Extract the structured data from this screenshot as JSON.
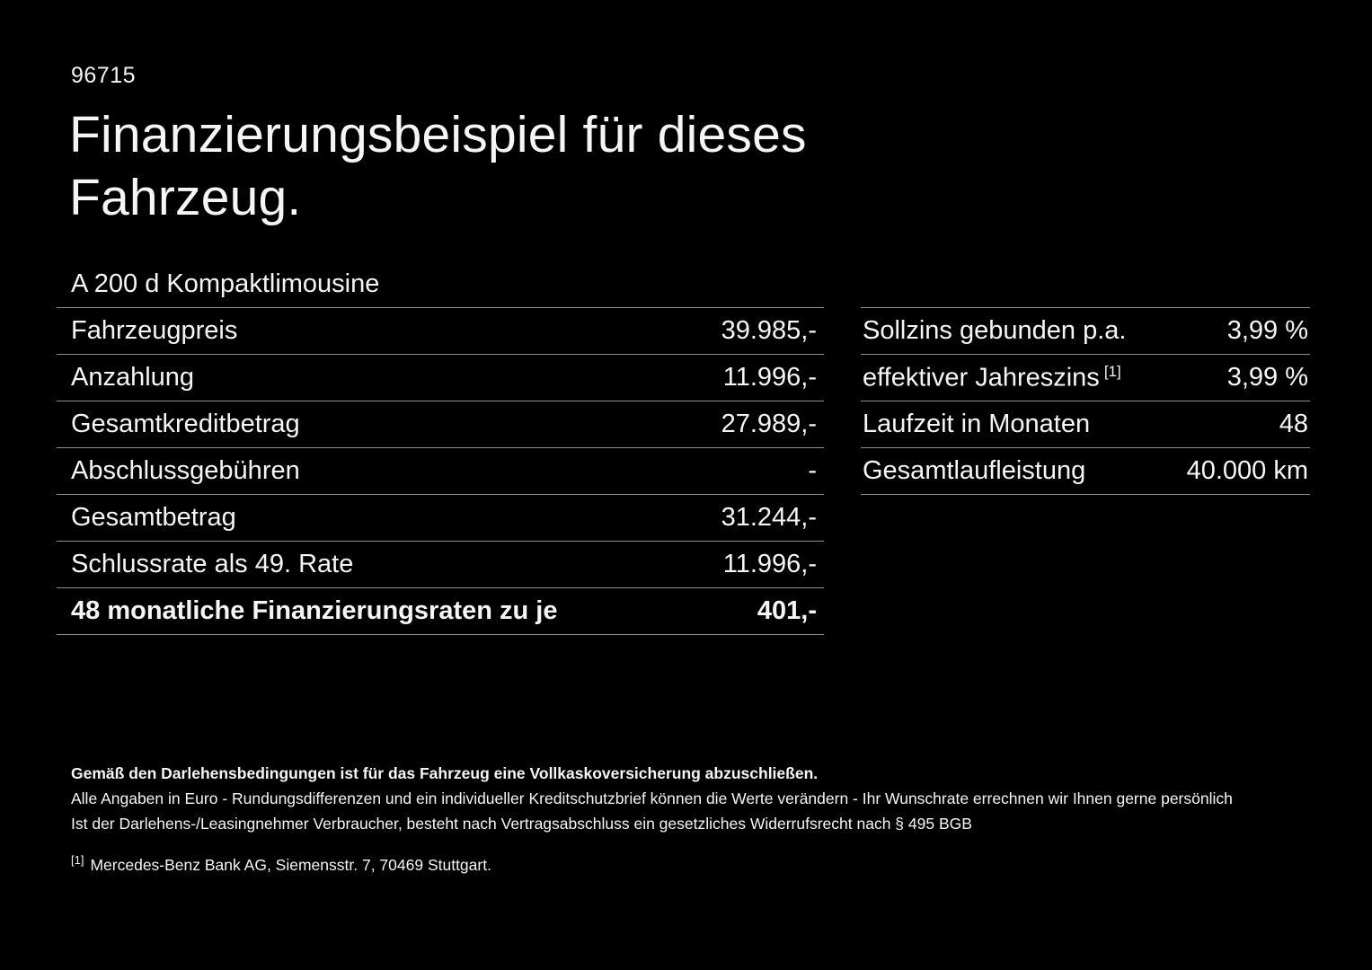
{
  "colors": {
    "background": "#000000",
    "text": "#f5f5f5",
    "divider": "#909090"
  },
  "header": {
    "code": "96715",
    "title": "Finanzierungsbeispiel für dieses Fahrzeug.",
    "vehicle": "A 200 d Kompaktlimousine"
  },
  "financing_table": {
    "rows": [
      {
        "label": "Fahrzeugpreis",
        "value": "39.985,-"
      },
      {
        "label": "Anzahlung",
        "value": "11.996,-"
      },
      {
        "label": "Gesamtkreditbetrag",
        "value": "27.989,-"
      },
      {
        "label": "Abschlussgebühren",
        "value": "-"
      },
      {
        "label": "Gesamtbetrag",
        "value": "31.244,-"
      },
      {
        "label": "Schlussrate als 49. Rate",
        "value": "11.996,-"
      },
      {
        "label": "48 monatliche Finanzierungsraten zu je",
        "value": "401,-"
      }
    ]
  },
  "conditions_table": {
    "rows": [
      {
        "label": "Sollzins gebunden p.a.",
        "value": "3,99 %"
      },
      {
        "label": "effektiver Jahreszins",
        "sup": "[1]",
        "value": "3,99 %"
      },
      {
        "label": "Laufzeit in Monaten",
        "value": "48"
      },
      {
        "label": "Gesamtlaufleistung",
        "value": "40.000 km"
      }
    ]
  },
  "footer": {
    "insurance_note": "Gemäß den Darlehensbedingungen ist für das Fahrzeug eine Vollkaskoversicherung abzuschließen.",
    "note1": "Alle Angaben in Euro - Rundungsdifferenzen und ein individueller Kreditschutzbrief können die Werte verändern - Ihr Wunschrate errechnen wir Ihnen gerne persönlich",
    "note2": "Ist der Darlehens-/Leasingnehmer Verbraucher, besteht nach Vertragsabschluss ein gesetzliches Widerrufsrecht nach § 495 BGB",
    "ref_marker": "[1]",
    "ref_text": "Mercedes-Benz Bank AG, Siemensstr. 7, 70469 Stuttgart."
  }
}
